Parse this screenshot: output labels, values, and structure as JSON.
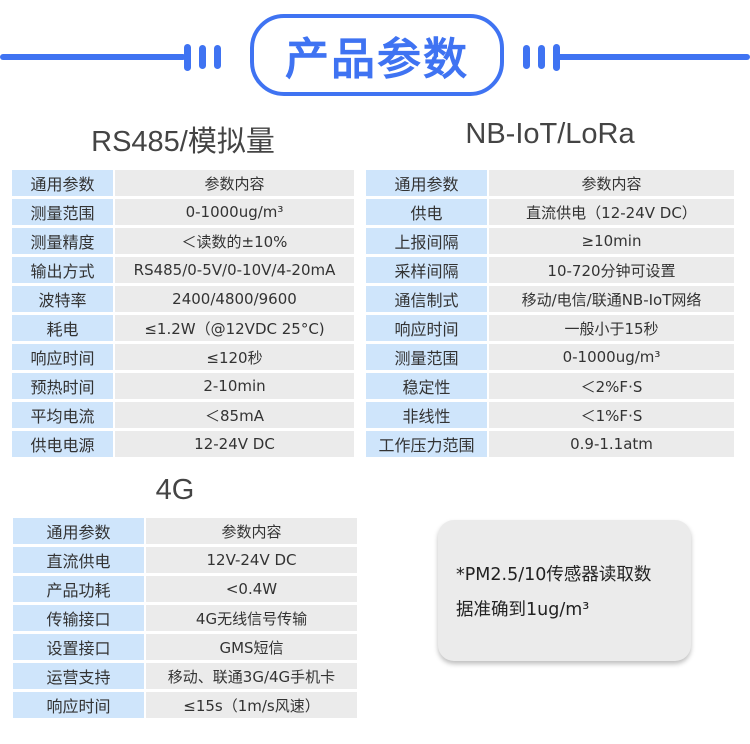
{
  "title": "产品参数",
  "accent": "#3f73f2",
  "sections": [
    {
      "heading": "RS485/模拟量",
      "header": [
        "通用参数",
        "参数内容"
      ],
      "rows": [
        [
          "测量范围",
          "0-1000ug/m³"
        ],
        [
          "测量精度",
          "＜读数的±10%"
        ],
        [
          "输出方式",
          "RS485/0-5V/0-10V/4-20mA"
        ],
        [
          "波特率",
          "2400/4800/9600"
        ],
        [
          "耗电",
          "≤1.2W（@12VDC 25°C)"
        ],
        [
          "响应时间",
          "≤120秒"
        ],
        [
          "预热时间",
          "2-10min"
        ],
        [
          "平均电流",
          "＜85mA"
        ],
        [
          "供电电源",
          "12-24V DC"
        ]
      ]
    },
    {
      "heading": "NB-IoT/LoRa",
      "header": [
        "通用参数",
        "参数内容"
      ],
      "rows": [
        [
          "供电",
          "直流供电（12-24V DC）"
        ],
        [
          "上报间隔",
          "≥10min"
        ],
        [
          "采样间隔",
          "10-720分钟可设置"
        ],
        [
          "通信制式",
          "移动/电信/联通NB-IoT网络"
        ],
        [
          "响应时间",
          "一般小于15秒"
        ],
        [
          "测量范围",
          "0-1000ug/m³"
        ],
        [
          "稳定性",
          "＜2%F·S"
        ],
        [
          "非线性",
          "＜1%F·S"
        ],
        [
          "工作压力范围",
          "0.9-1.1atm"
        ]
      ]
    },
    {
      "heading": "4G",
      "header": [
        "通用参数",
        "参数内容"
      ],
      "rows": [
        [
          "直流供电",
          "12V-24V DC"
        ],
        [
          "产品功耗",
          "<0.4W"
        ],
        [
          "传输接口",
          "4G无线信号传输"
        ],
        [
          "设置接口",
          "GMS短信"
        ],
        [
          "运营支持",
          "移动、联通3G/4G手机卡"
        ],
        [
          "响应时间",
          "≤15s（1m/s风速）"
        ]
      ]
    }
  ],
  "note": {
    "line1": "*PM2.5/10传感器读取数",
    "line2": "据准确到1ug/m³"
  }
}
